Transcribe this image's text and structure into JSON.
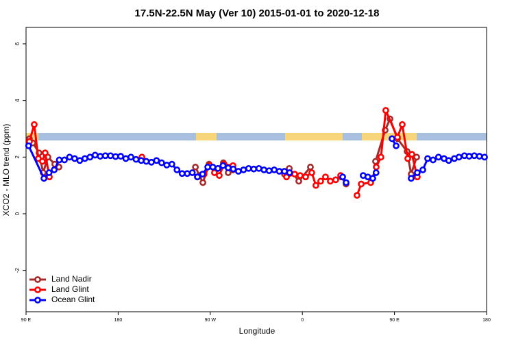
{
  "chart_data": {
    "type": "line",
    "title": "17.5N-22.5N May (Ver 10)   2015-01-01 to 2020-12-18",
    "x_label": "Longitude",
    "y_label": "XCO2 - MLO trend (ppm)",
    "xlim": [
      90,
      540
    ],
    "ylim": [
      -3.46,
      6.58
    ],
    "xticks": [
      {
        "value": 90,
        "label": "90 E"
      },
      180,
      {
        "value": 270,
        "label": "90 W"
      },
      {
        "value": 360,
        "label": "0"
      },
      {
        "value": 450,
        "label": "90 E"
      },
      {
        "value": 540,
        "label": "180"
      }
    ],
    "yticks": [
      -2,
      0,
      2,
      4,
      6
    ],
    "legend": "bottom-left",
    "series": [
      {
        "name": "Land Nadir",
        "color": "#a52a2a",
        "x": [
          93.3,
          96.7,
          102.7,
          106.7,
          111.4,
          118.1,
          122.2,
          null,
          203.2,
          null,
          255.5,
          259.4,
          262.8,
          268.8,
          277.5,
          282.8,
          287.5,
          292.2,
          null,
          342.5,
          347.2,
          356.5,
          367.9,
          null,
          398,
          402.7,
          null,
          431.5,
          440.9,
          445.6,
          452.9,
          462.3,
          466.3,
          471.7
        ],
        "values": [
          2.65,
          2.5,
          2.15,
          1.45,
          2.0,
          1.75,
          1.65,
          null,
          1.95,
          null,
          1.65,
          1.35,
          1.1,
          1.75,
          1.6,
          1.8,
          1.45,
          1.55,
          null,
          1.4,
          1.6,
          1.15,
          1.65,
          null,
          1.3,
          1.05,
          null,
          1.85,
          2.95,
          3.35,
          2.65,
          2.2,
          1.4,
          2.0
        ]
      },
      {
        "name": "Land Glint",
        "color": "#ff0000",
        "x": [
          93.3,
          98,
          102,
          106,
          108.7,
          112.8,
          null,
          203.2,
          null,
          257.4,
          264,
          269.5,
          274.1,
          278.8,
          283.5,
          292.2,
          null,
          344.5,
          352.5,
          357.8,
          363.2,
          369.2,
          373.2,
          377.9,
          382.6,
          387.3,
          392.6,
          397.4,
          null,
          413.4,
          417.5,
          426.8,
          432.2,
          436.8,
          441.5,
          452.9,
          457.6,
          463,
          467,
          472.3
        ],
        "values": [
          2.55,
          3.15,
          1.95,
          1.85,
          2.15,
          1.3,
          null,
          2.0,
          null,
          1.3,
          1.4,
          1.7,
          1.45,
          1.35,
          1.75,
          1.7,
          null,
          1.3,
          1.4,
          1.35,
          1.3,
          1.45,
          1.0,
          1.15,
          1.3,
          1.15,
          1.2,
          1.35,
          null,
          0.65,
          1.05,
          1.1,
          1.65,
          2.0,
          3.65,
          2.7,
          3.15,
          1.95,
          2.1,
          1.3
        ]
      },
      {
        "name": "Ocean Glint",
        "color": "#0000ff",
        "x": [
          92.5,
          107.5,
          112.5,
          117.5,
          122.5,
          127.5,
          132.5,
          137.5,
          142.5,
          147.5,
          152.5,
          157.5,
          162.5,
          167.5,
          172.5,
          177.5,
          182.5,
          187.5,
          192.5,
          197.5,
          202.5,
          207.5,
          212.5,
          217.5,
          222.5,
          227.5,
          232.5,
          237.5,
          242.5,
          247.5,
          252.5,
          257.5,
          262.5,
          267.5,
          272.5,
          277.5,
          282.5,
          287.5,
          292.5,
          297.5,
          302.5,
          307.5,
          312.5,
          317.5,
          322.5,
          327.5,
          332.5,
          337.5,
          342.5,
          347.5,
          null,
          399.4,
          402.7,
          null,
          419.4,
          424,
          428.8,
          432,
          null,
          447.6,
          451.6,
          null,
          466.3,
          472.3,
          477.7,
          482.4,
          487.7,
          493,
          498.4,
          503,
          508.5,
          513,
          518.4,
          523,
          528,
          533,
          538
        ],
        "values": [
          2.4,
          1.25,
          1.45,
          1.55,
          1.9,
          1.9,
          2.0,
          1.95,
          1.88,
          1.95,
          2.0,
          2.07,
          2.03,
          2.05,
          2.05,
          2.02,
          2.03,
          1.95,
          2.0,
          1.92,
          1.88,
          1.85,
          1.82,
          1.88,
          1.8,
          1.72,
          1.75,
          1.55,
          1.42,
          1.42,
          1.45,
          1.3,
          1.4,
          1.65,
          1.65,
          1.6,
          1.7,
          1.62,
          1.58,
          1.5,
          1.55,
          1.6,
          1.58,
          1.6,
          1.55,
          1.52,
          1.55,
          1.5,
          1.5,
          1.45,
          null,
          1.3,
          1.1,
          null,
          1.35,
          1.3,
          1.25,
          1.45,
          null,
          2.65,
          2.4,
          null,
          1.25,
          1.45,
          1.55,
          1.95,
          1.9,
          2.0,
          1.95,
          1.88,
          1.95,
          2.0,
          2.05,
          2.03,
          2.05,
          2.03,
          2.0
        ]
      }
    ]
  }
}
